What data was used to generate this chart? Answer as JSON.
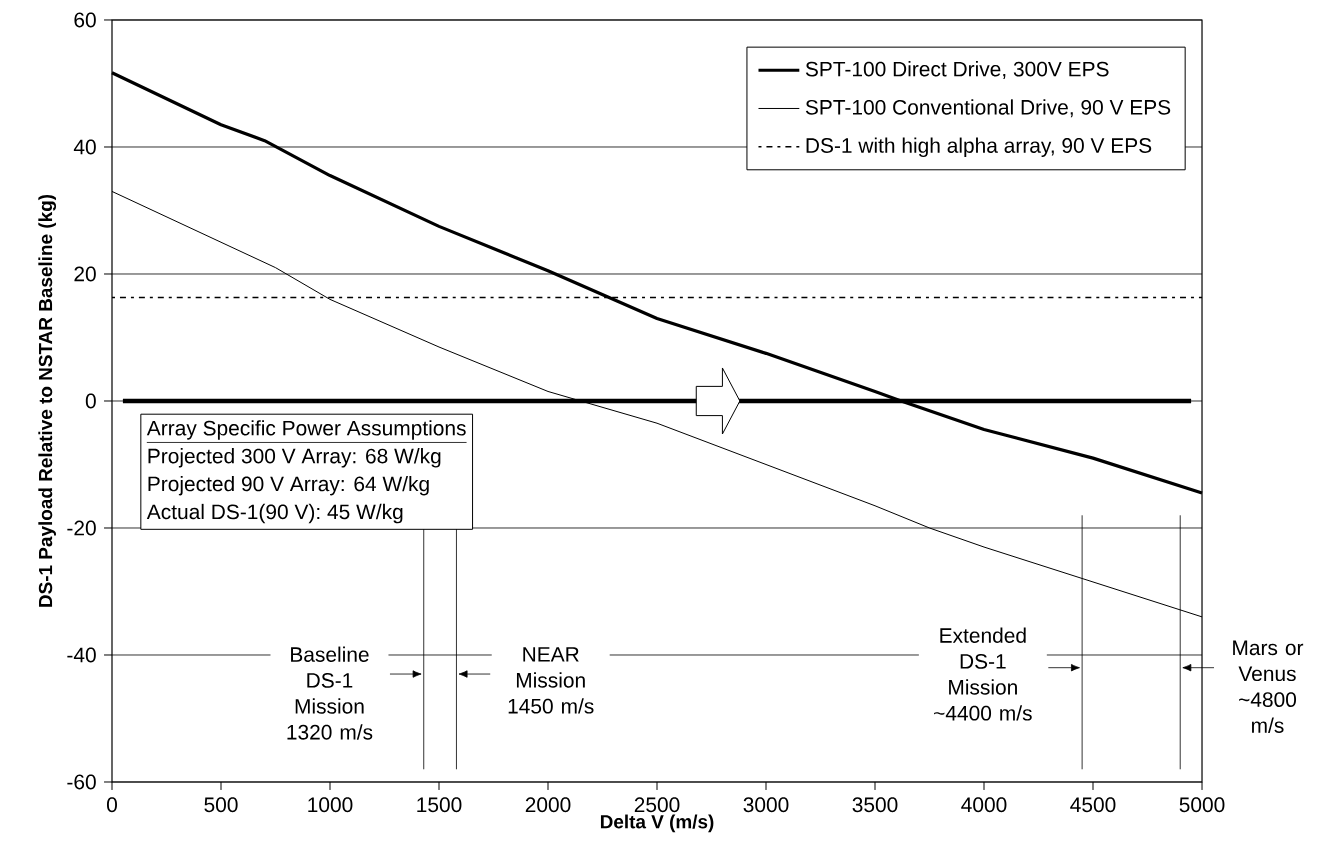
{
  "chart_data": {
    "type": "line",
    "xlabel": "Delta V (m/s)",
    "ylabel": "DS-1 Payload Relative to NSTAR Baseline (kg)",
    "series": [
      {
        "name": "SPT-100 Direct Drive, 300V EPS",
        "color": "#000000",
        "x": [
          0,
          500,
          700,
          1000,
          1500,
          2000,
          2500,
          3000,
          3500,
          3620,
          4000,
          4500,
          5000
        ],
        "values": [
          51.7,
          43.5,
          41,
          35.5,
          27.5,
          20.5,
          13,
          7.5,
          1.5,
          0,
          -4.5,
          -9,
          -14.5
        ]
      },
      {
        "name": "SPT-100 Conventional Drive, 90 V EPS",
        "color": "#000000",
        "x": [
          0,
          500,
          750,
          1000,
          1500,
          2000,
          2150,
          2500,
          3000,
          3500,
          3750,
          4000,
          4500,
          5000
        ],
        "values": [
          33,
          25,
          21,
          16,
          8.5,
          1.5,
          0,
          -3.5,
          -10,
          -16.5,
          -20,
          -23,
          -28.5,
          -34
        ]
      },
      {
        "name": "DS-1 with high alpha array, 90 V EPS",
        "color": "#000000",
        "line_style": "dotted",
        "x": [
          0,
          5000
        ],
        "values": [
          16.3,
          16.3
        ]
      }
    ],
    "xlim": [
      0,
      5000
    ],
    "ylim": [
      -60,
      60
    ],
    "xticks": [
      0,
      500,
      1000,
      1500,
      2000,
      2500,
      3000,
      3500,
      4000,
      4500,
      5000
    ],
    "yticks": [
      -60,
      -40,
      -20,
      0,
      20,
      40,
      60
    ],
    "grid": "y",
    "legend": "top right",
    "marker": "none",
    "line_style": "solid",
    "ref_lines": [
      {
        "axis": "y",
        "value": 0
      },
      {
        "axis": "x",
        "value": 1430,
        "label": "Baseline DS-1 Mission 1320 m/s"
      },
      {
        "axis": "x",
        "value": 1580,
        "label": "NEAR Mission 1450 m/s"
      },
      {
        "axis": "x",
        "value": 4450,
        "label": "Extended DS-1 Mission ~4400 m/s"
      },
      {
        "axis": "x",
        "value": 4900,
        "label": "Mars or Venus ~4800 m/s"
      }
    ],
    "annotations": [
      "Array Specific Power Assumptions",
      "Projected 300 V Array:  68 W/kg",
      "Projected 90 V Array:   64 W/kg",
      "Actual DS-1(90 V):      45 W/kg"
    ]
  }
}
